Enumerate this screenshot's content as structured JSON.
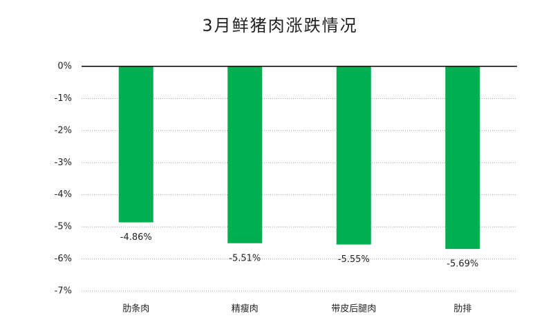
{
  "chart_data": {
    "type": "bar",
    "title": "3月鲜猪肉涨跌情况",
    "categories": [
      "肋条肉",
      "精瘦肉",
      "带皮后腿肉",
      "肋排"
    ],
    "values": [
      -4.86,
      -5.51,
      -5.55,
      -5.69
    ],
    "value_labels": [
      "-4.86%",
      "-5.51%",
      "-5.55%",
      "-5.69%"
    ],
    "color": "#00b050",
    "ylim": [
      -7,
      0
    ],
    "yticks": [
      {
        "value": 0,
        "label": "0%"
      },
      {
        "value": -1,
        "label": "-1%"
      },
      {
        "value": -2,
        "label": "-2%"
      },
      {
        "value": -3,
        "label": "-3%"
      },
      {
        "value": -4,
        "label": "-4%"
      },
      {
        "value": -5,
        "label": "-5%"
      },
      {
        "value": -6,
        "label": "-6%"
      },
      {
        "value": -7,
        "label": "-7%"
      }
    ],
    "grid": true
  }
}
